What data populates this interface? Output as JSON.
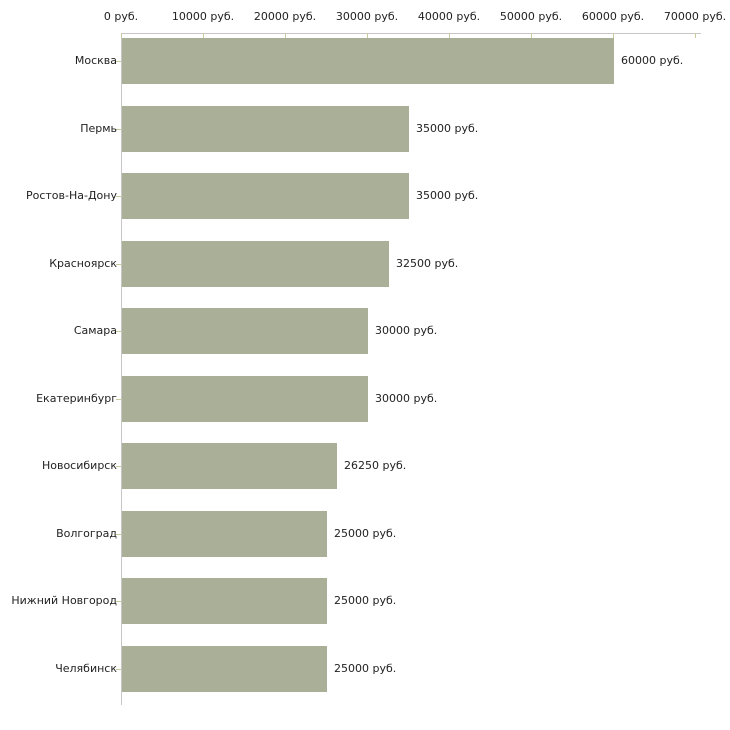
{
  "chart_data": {
    "type": "bar",
    "orientation": "horizontal",
    "title": "",
    "xlabel": "",
    "ylabel": "",
    "categories": [
      "Москва",
      "Пермь",
      "Ростов-На-Дону",
      "Красноярск",
      "Самара",
      "Екатеринбург",
      "Новосибирск",
      "Волгоград",
      "Нижний Новгород",
      "Челябинск"
    ],
    "values": [
      60000,
      35000,
      35000,
      32500,
      30000,
      30000,
      26250,
      25000,
      25000,
      25000
    ],
    "value_labels": [
      "60000 руб.",
      "35000 руб.",
      "35000 руб.",
      "32500 руб.",
      "30000 руб.",
      "30000 руб.",
      "26250 руб.",
      "25000 руб.",
      "25000 руб.",
      "25000 руб."
    ],
    "x_ticks": [
      0,
      10000,
      20000,
      30000,
      40000,
      50000,
      60000,
      70000
    ],
    "x_tick_labels": [
      "0 руб.",
      "10000 руб.",
      "20000 руб.",
      "30000 руб.",
      "40000 руб.",
      "50000 руб.",
      "60000 руб.",
      "70000 руб."
    ],
    "xlim": [
      0,
      70000
    ],
    "grid": "off",
    "legend": "none",
    "colors": {
      "bar": "#a9b097",
      "axis": "#c6c6c6",
      "tick": "#c9c99c",
      "text": "#222222",
      "background": "#ffffff"
    }
  }
}
